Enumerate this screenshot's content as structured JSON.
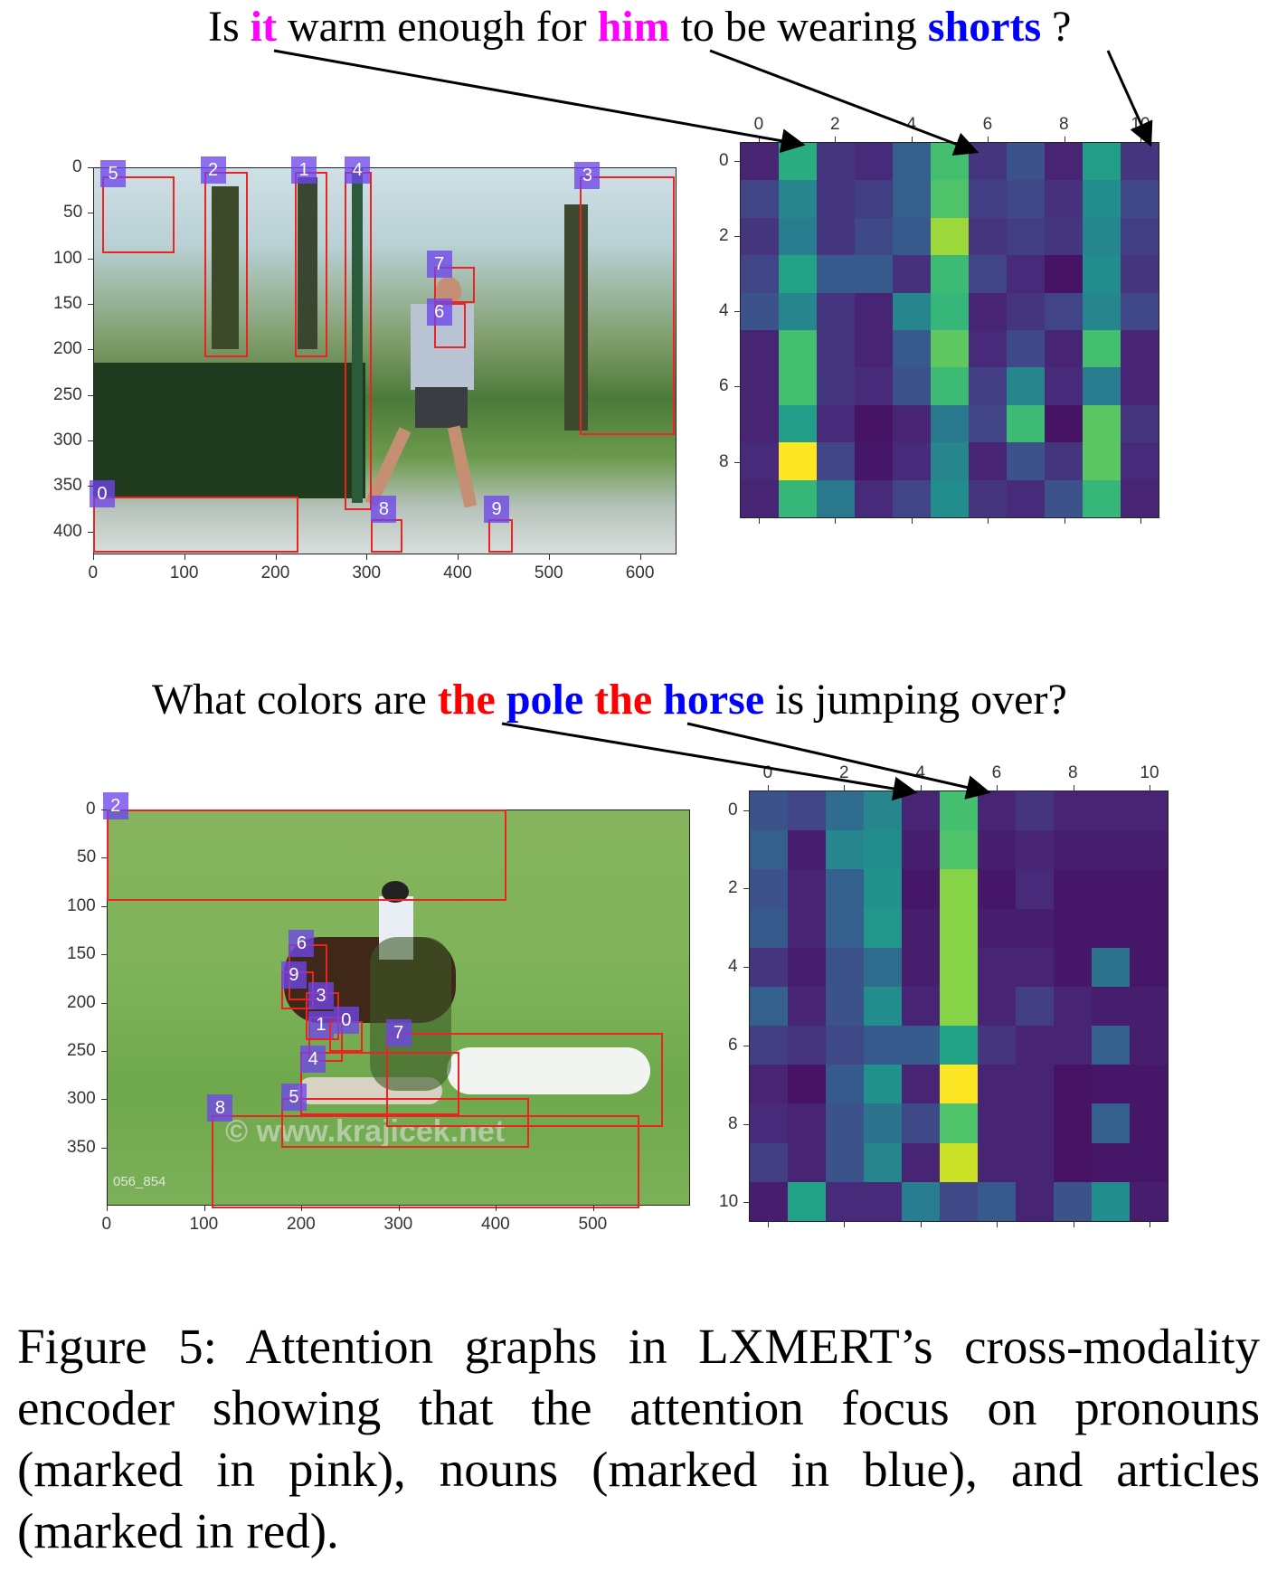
{
  "figure1": {
    "question": [
      {
        "text": "Is ",
        "style": "plain"
      },
      {
        "text": "it",
        "style": "pink"
      },
      {
        "text": " warm enough for ",
        "style": "plain"
      },
      {
        "text": "him",
        "style": "pink"
      },
      {
        "text": " to be wearing ",
        "style": "plain"
      },
      {
        "text": "shorts",
        "style": "blue"
      },
      {
        "text": " ?",
        "style": "plain"
      }
    ],
    "image_axes": {
      "x_ticks": [
        "0",
        "100",
        "200",
        "300",
        "400",
        "500",
        "600"
      ],
      "y_ticks": [
        "0",
        "50",
        "100",
        "150",
        "200",
        "250",
        "300",
        "350",
        "400"
      ]
    },
    "box_labels": [
      "5",
      "2",
      "1",
      "4",
      "3",
      "7",
      "6",
      "0",
      "8",
      "9"
    ],
    "heatmap": {
      "x_ticks": [
        "0",
        "2",
        "4",
        "6",
        "8",
        "10"
      ],
      "y_ticks": [
        "0",
        "2",
        "4",
        "6",
        "8"
      ],
      "colormap": "viridis",
      "rows": 10,
      "cols": 11,
      "values": [
        [
          0.1,
          0.62,
          0.15,
          0.12,
          0.3,
          0.7,
          0.15,
          0.25,
          0.1,
          0.55,
          0.15
        ],
        [
          0.2,
          0.45,
          0.15,
          0.18,
          0.3,
          0.72,
          0.18,
          0.22,
          0.14,
          0.48,
          0.22
        ],
        [
          0.15,
          0.42,
          0.15,
          0.22,
          0.28,
          0.85,
          0.15,
          0.18,
          0.15,
          0.46,
          0.18
        ],
        [
          0.2,
          0.58,
          0.28,
          0.28,
          0.14,
          0.68,
          0.2,
          0.12,
          0.05,
          0.48,
          0.16
        ],
        [
          0.25,
          0.45,
          0.15,
          0.1,
          0.45,
          0.66,
          0.1,
          0.15,
          0.2,
          0.45,
          0.22
        ],
        [
          0.1,
          0.7,
          0.15,
          0.1,
          0.28,
          0.75,
          0.12,
          0.22,
          0.1,
          0.7,
          0.1
        ],
        [
          0.1,
          0.7,
          0.16,
          0.12,
          0.25,
          0.68,
          0.18,
          0.45,
          0.12,
          0.42,
          0.1
        ],
        [
          0.1,
          0.55,
          0.12,
          0.05,
          0.1,
          0.4,
          0.2,
          0.68,
          0.05,
          0.74,
          0.15
        ],
        [
          0.12,
          1.0,
          0.2,
          0.06,
          0.12,
          0.45,
          0.1,
          0.25,
          0.15,
          0.74,
          0.12
        ],
        [
          0.1,
          0.66,
          0.4,
          0.12,
          0.2,
          0.48,
          0.15,
          0.12,
          0.25,
          0.66,
          0.1
        ]
      ]
    }
  },
  "figure2": {
    "question": [
      {
        "text": "What colors are ",
        "style": "plain"
      },
      {
        "text": "the",
        "style": "red"
      },
      {
        "text": " ",
        "style": "plain"
      },
      {
        "text": "pole",
        "style": "blue"
      },
      {
        "text": " ",
        "style": "plain"
      },
      {
        "text": "the",
        "style": "red"
      },
      {
        "text": " ",
        "style": "plain"
      },
      {
        "text": "horse",
        "style": "blue"
      },
      {
        "text": " is jumping over?",
        "style": "plain"
      }
    ],
    "image_axes": {
      "x_ticks": [
        "0",
        "100",
        "200",
        "300",
        "400",
        "500"
      ],
      "y_ticks": [
        "0",
        "50",
        "100",
        "150",
        "200",
        "250",
        "300",
        "350"
      ]
    },
    "box_labels": [
      "2",
      "6",
      "9",
      "3",
      "1",
      "0",
      "7",
      "4",
      "5",
      "8"
    ],
    "watermark": "© www.krajicek.net",
    "corner_text": "056_854",
    "heatmap": {
      "x_ticks": [
        "0",
        "2",
        "4",
        "6",
        "8",
        "10"
      ],
      "y_ticks": [
        "0",
        "2",
        "4",
        "6",
        "8",
        "10"
      ],
      "colormap": "viridis",
      "rows": 11,
      "cols": 11,
      "values": [
        [
          0.25,
          0.2,
          0.35,
          0.45,
          0.1,
          0.7,
          0.1,
          0.15,
          0.1,
          0.1,
          0.1
        ],
        [
          0.3,
          0.08,
          0.45,
          0.48,
          0.08,
          0.72,
          0.08,
          0.1,
          0.08,
          0.08,
          0.08
        ],
        [
          0.25,
          0.1,
          0.3,
          0.5,
          0.06,
          0.82,
          0.06,
          0.12,
          0.06,
          0.06,
          0.06
        ],
        [
          0.28,
          0.1,
          0.3,
          0.52,
          0.08,
          0.82,
          0.08,
          0.08,
          0.06,
          0.06,
          0.06
        ],
        [
          0.15,
          0.08,
          0.25,
          0.35,
          0.08,
          0.82,
          0.1,
          0.1,
          0.06,
          0.38,
          0.06
        ],
        [
          0.3,
          0.1,
          0.25,
          0.48,
          0.1,
          0.82,
          0.1,
          0.18,
          0.1,
          0.08,
          0.08
        ],
        [
          0.18,
          0.15,
          0.22,
          0.28,
          0.28,
          0.58,
          0.15,
          0.1,
          0.1,
          0.3,
          0.08
        ],
        [
          0.1,
          0.05,
          0.28,
          0.5,
          0.1,
          1.0,
          0.1,
          0.1,
          0.05,
          0.06,
          0.06
        ],
        [
          0.12,
          0.1,
          0.25,
          0.38,
          0.22,
          0.72,
          0.1,
          0.1,
          0.05,
          0.3,
          0.06
        ],
        [
          0.18,
          0.1,
          0.25,
          0.45,
          0.1,
          0.92,
          0.1,
          0.1,
          0.05,
          0.06,
          0.06
        ],
        [
          0.08,
          0.58,
          0.12,
          0.12,
          0.42,
          0.22,
          0.28,
          0.1,
          0.25,
          0.48,
          0.08
        ]
      ]
    }
  },
  "caption": "Figure 5:  Attention graphs in LXMERT’s cross-modality encoder showing that the attention focus on pronouns (marked in pink), nouns (marked in blue), and articles (marked in red).",
  "colors": {
    "pronoun": "#ff00ff",
    "noun": "#0000ff",
    "article": "#ff0000",
    "box": "#ee2222",
    "tag": "#6e46eb"
  }
}
